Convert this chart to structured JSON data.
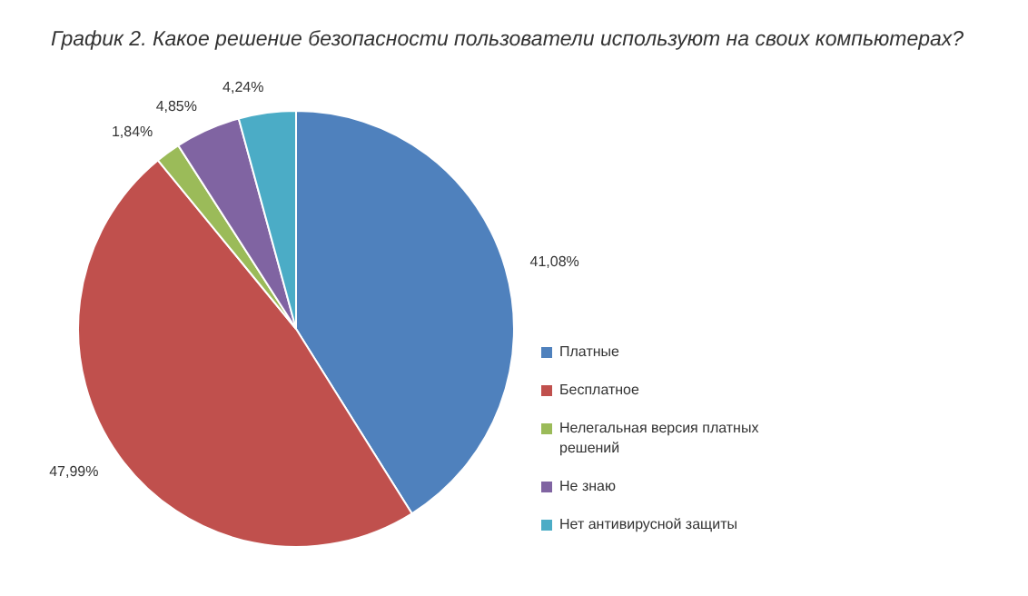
{
  "chart_data": {
    "type": "pie",
    "title": "График 2. Какое решение безопасности пользователи используют на своих компьютерах?",
    "categories": [
      "Платные",
      "Бесплатное",
      "Нелегальная версия платных решений",
      "Не знаю",
      "Нет антивирусной защиты"
    ],
    "values": [
      41.08,
      47.99,
      1.84,
      4.85,
      4.24
    ],
    "value_labels": [
      "41,08%",
      "47,99%",
      "1,84%",
      "4,85%",
      "4,24%"
    ],
    "colors": [
      "#4f81bd",
      "#c0504d",
      "#9bbb59",
      "#8064a2",
      "#4bacc6"
    ],
    "legend": "right"
  }
}
